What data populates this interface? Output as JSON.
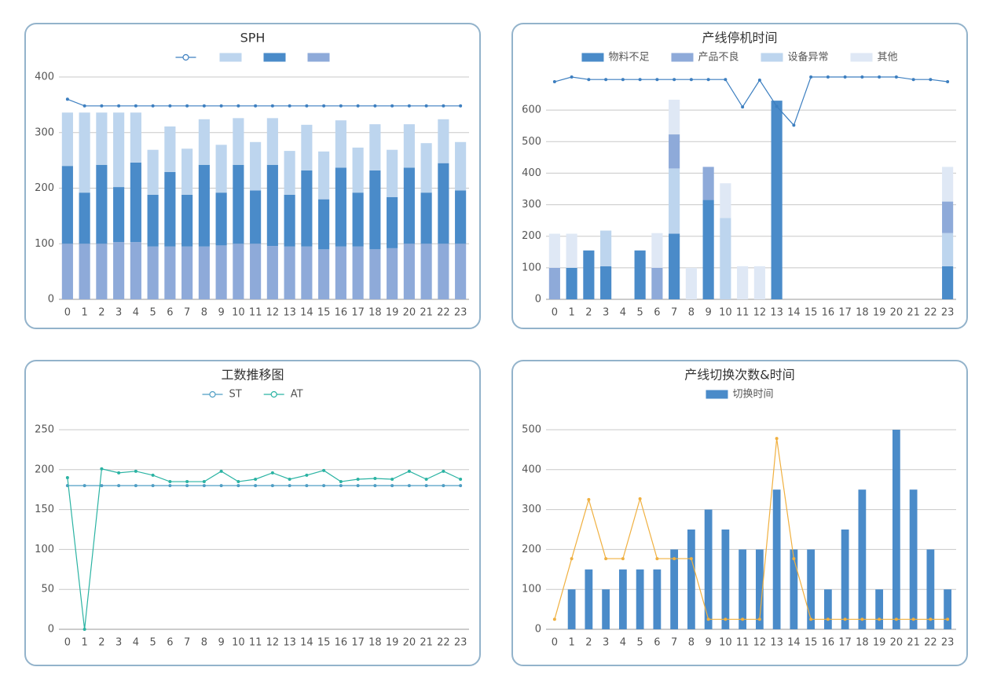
{
  "chart_data": [
    {
      "type": "bar",
      "stacked": true,
      "title": "SPH",
      "categories": [
        "0",
        "1",
        "2",
        "3",
        "4",
        "5",
        "6",
        "7",
        "8",
        "9",
        "10",
        "11",
        "12",
        "13",
        "14",
        "15",
        "16",
        "17",
        "18",
        "19",
        "20",
        "21",
        "22",
        "23"
      ],
      "ylim": [
        0,
        400
      ],
      "yticks": [
        0,
        100,
        200,
        300,
        400
      ],
      "grid": true,
      "legend": "top",
      "stack_order": [
        3,
        2,
        1
      ],
      "series": [
        {
          "type": "line",
          "color": "#3d7fc0",
          "values": [
            360,
            348,
            348,
            348,
            348,
            348,
            348,
            348,
            348,
            348,
            348,
            348,
            348,
            348,
            348,
            348,
            348,
            348,
            348,
            348,
            348,
            348,
            348,
            348
          ]
        },
        {
          "color": "#bdd5ee",
          "values": [
            96,
            144,
            94,
            134,
            90,
            81,
            82,
            83,
            82,
            86,
            84,
            87,
            84,
            79,
            82,
            86,
            85,
            81,
            83,
            85,
            78,
            89,
            79,
            87
          ]
        },
        {
          "color": "#4a8bc9",
          "values": [
            140,
            92,
            142,
            99,
            143,
            93,
            134,
            93,
            147,
            95,
            142,
            96,
            146,
            93,
            137,
            90,
            142,
            97,
            142,
            92,
            137,
            92,
            145,
            96
          ]
        },
        {
          "color": "#8eaad9",
          "values": [
            100,
            100,
            100,
            103,
            103,
            95,
            95,
            95,
            95,
            97,
            100,
            100,
            96,
            95,
            95,
            90,
            95,
            95,
            90,
            92,
            100,
            100,
            100,
            100
          ]
        }
      ]
    },
    {
      "type": "bar",
      "stacked": true,
      "title": "产线停机时间",
      "categories": [
        "0",
        "1",
        "2",
        "3",
        "4",
        "5",
        "6",
        "7",
        "8",
        "9",
        "10",
        "11",
        "12",
        "13",
        "14",
        "15",
        "16",
        "17",
        "18",
        "19",
        "20",
        "21",
        "22",
        "23"
      ],
      "ylim": [
        0,
        705
      ],
      "yticks": [
        0,
        100,
        200,
        300,
        400,
        500,
        600
      ],
      "grid": true,
      "legend": "top",
      "stack_order": [
        0,
        2,
        1,
        3
      ],
      "series": [
        {
          "name": "物料不足",
          "color": "#4a8bc9",
          "values": [
            0,
            100,
            155,
            105,
            0,
            155,
            0,
            208,
            0,
            315,
            0,
            0,
            0,
            630,
            0,
            0,
            0,
            0,
            0,
            0,
            0,
            0,
            0,
            105
          ]
        },
        {
          "name": "产品不良",
          "color": "#8eaad9",
          "values": [
            100,
            0,
            0,
            0,
            0,
            0,
            100,
            108,
            0,
            105,
            0,
            0,
            0,
            0,
            0,
            0,
            0,
            0,
            0,
            0,
            0,
            0,
            0,
            100
          ]
        },
        {
          "name": "设备异常",
          "color": "#bdd5ee",
          "values": [
            0,
            0,
            0,
            113,
            0,
            0,
            0,
            207,
            0,
            0,
            258,
            0,
            0,
            0,
            0,
            0,
            0,
            0,
            0,
            0,
            0,
            0,
            0,
            105
          ]
        },
        {
          "name": "其他",
          "color": "#dfe8f5",
          "values": [
            108,
            108,
            0,
            0,
            0,
            0,
            110,
            110,
            100,
            0,
            110,
            105,
            105,
            0,
            0,
            0,
            0,
            0,
            0,
            0,
            0,
            0,
            0,
            110
          ]
        },
        {
          "type": "line",
          "in_legend": false,
          "color": "#3d7fc0",
          "values": [
            690,
            705,
            697,
            697,
            697,
            697,
            697,
            697,
            697,
            697,
            697,
            610,
            695,
            612,
            552,
            705,
            705,
            705,
            705,
            705,
            705,
            697,
            697,
            690
          ]
        }
      ]
    },
    {
      "type": "line",
      "title": "工数推移图",
      "categories": [
        "0",
        "1",
        "2",
        "3",
        "4",
        "5",
        "6",
        "7",
        "8",
        "9",
        "10",
        "11",
        "12",
        "13",
        "14",
        "15",
        "16",
        "17",
        "18",
        "19",
        "20",
        "21",
        "22",
        "23"
      ],
      "ylim": [
        0,
        250
      ],
      "yticks": [
        0,
        50,
        100,
        150,
        200,
        250
      ],
      "grid": true,
      "legend": "top",
      "series": [
        {
          "name": "ST",
          "type": "line",
          "color": "#4f9ec4",
          "values": [
            180,
            180,
            180,
            180,
            180,
            180,
            180,
            180,
            180,
            180,
            180,
            180,
            180,
            180,
            180,
            180,
            180,
            180,
            180,
            180,
            180,
            180,
            180,
            180
          ]
        },
        {
          "name": "AT",
          "type": "line",
          "color": "#2bb3a3",
          "values": [
            190,
            0,
            201,
            196,
            198,
            193,
            185,
            185,
            185,
            198,
            185,
            188,
            196,
            188,
            193,
            199,
            185,
            188,
            189,
            188,
            198,
            188,
            198,
            188
          ]
        }
      ]
    },
    {
      "type": "bar",
      "title": "产线切换次数&时间",
      "categories": [
        "0",
        "1",
        "2",
        "3",
        "4",
        "5",
        "6",
        "7",
        "8",
        "9",
        "10",
        "11",
        "12",
        "13",
        "14",
        "15",
        "16",
        "17",
        "18",
        "19",
        "20",
        "21",
        "22",
        "23"
      ],
      "ylim": [
        0,
        500
      ],
      "yticks": [
        0,
        100,
        200,
        300,
        400,
        500
      ],
      "grid": true,
      "legend": "top",
      "series": [
        {
          "name": "切换时间",
          "color": "#4a8bc9",
          "values": [
            0,
            100,
            150,
            100,
            150,
            150,
            150,
            200,
            250,
            300,
            250,
            200,
            200,
            350,
            200,
            200,
            100,
            250,
            350,
            100,
            500,
            350,
            200,
            100
          ]
        },
        {
          "type": "line",
          "in_legend": false,
          "color": "#f0b040",
          "values": [
            25,
            177,
            325,
            177,
            177,
            327,
            177,
            177,
            177,
            25,
            25,
            25,
            25,
            478,
            177,
            25,
            25,
            25,
            25,
            25,
            25,
            25,
            25,
            25
          ]
        }
      ]
    }
  ]
}
